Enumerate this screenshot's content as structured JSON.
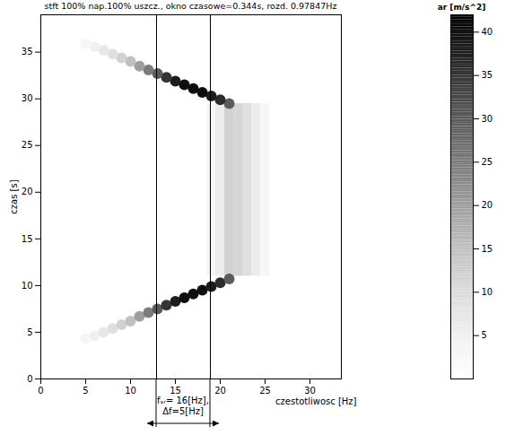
{
  "chart_data": {
    "type": "spectrogram",
    "title": "stft 100% nap.100% uszcz., okno czasowe=0.344s, rozd. 0.97847Hz",
    "x_label": "czestotliwosc [Hz]",
    "y_label": "czas [s]",
    "xlim": [
      0,
      33.5
    ],
    "xticks": [
      0,
      5,
      10,
      15,
      20,
      25,
      30
    ],
    "ylim": [
      0,
      39
    ],
    "yticks": [
      0,
      5,
      10,
      15,
      20,
      25,
      30,
      35
    ],
    "ridge": [
      [
        5,
        4.3,
        3
      ],
      [
        6,
        4.6,
        5
      ],
      [
        7,
        5.0,
        7
      ],
      [
        8,
        5.4,
        9
      ],
      [
        9,
        5.8,
        12
      ],
      [
        10,
        6.2,
        15
      ],
      [
        11,
        6.7,
        20
      ],
      [
        12,
        7.1,
        25
      ],
      [
        13,
        7.5,
        30
      ],
      [
        14,
        7.9,
        35
      ],
      [
        15,
        8.3,
        38
      ],
      [
        16,
        8.7,
        40
      ],
      [
        17,
        9.1,
        40
      ],
      [
        18,
        9.5,
        40
      ],
      [
        19,
        9.9,
        38
      ],
      [
        20,
        10.3,
        36
      ],
      [
        21,
        10.7,
        30
      ],
      [
        21,
        29.5,
        30
      ],
      [
        20,
        29.9,
        36
      ],
      [
        19,
        30.3,
        38
      ],
      [
        18,
        30.7,
        40
      ],
      [
        17,
        31.1,
        40
      ],
      [
        16,
        31.5,
        40
      ],
      [
        15,
        31.9,
        38
      ],
      [
        14,
        32.3,
        35
      ],
      [
        13,
        32.7,
        30
      ],
      [
        12,
        33.1,
        25
      ],
      [
        11,
        33.5,
        20
      ],
      [
        10,
        34.0,
        15
      ],
      [
        9,
        34.4,
        12
      ],
      [
        8,
        34.8,
        9
      ],
      [
        7,
        35.2,
        7
      ],
      [
        6,
        35.6,
        5
      ],
      [
        5,
        35.9,
        3
      ]
    ],
    "plateau": [
      {
        "frequency": [
          18.5,
          19.5
        ],
        "time": [
          11,
          29.5
        ],
        "value": 3
      },
      {
        "frequency": [
          19.5,
          20.5
        ],
        "time": [
          11,
          29.5
        ],
        "value": 6
      },
      {
        "frequency": [
          20.5,
          21.5
        ],
        "time": [
          11,
          29.5
        ],
        "value": 12
      },
      {
        "frequency": [
          21.5,
          22.5
        ],
        "time": [
          11,
          29.5
        ],
        "value": 11
      },
      {
        "frequency": [
          22.5,
          23.5
        ],
        "time": [
          11,
          29.5
        ],
        "value": 9
      },
      {
        "frequency": [
          23.5,
          24.5
        ],
        "time": [
          11,
          29.5
        ],
        "value": 6
      },
      {
        "frequency": [
          24.5,
          25.5
        ],
        "time": [
          11,
          29.5
        ],
        "value": 3
      }
    ],
    "annotation": {
      "lines": [
        "fₛᵣ= 16[Hz],",
        "Δf=5[Hz]"
      ],
      "band": [
        12.9,
        18.9
      ]
    },
    "colorbar": {
      "label": "ar [m/s^2]",
      "range": [
        0,
        42
      ],
      "ticks": [
        5,
        10,
        15,
        20,
        25,
        30,
        35,
        40
      ]
    }
  }
}
